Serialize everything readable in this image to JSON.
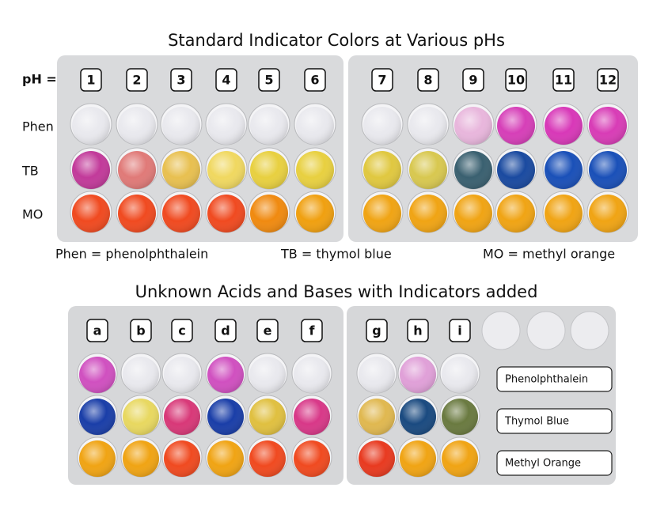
{
  "standard": {
    "title": "Standard Indicator Colors at Various pHs",
    "ph_label": "pH =",
    "ph_values": [
      "1",
      "2",
      "3",
      "4",
      "5",
      "6",
      "7",
      "8",
      "9",
      "10",
      "11",
      "12"
    ],
    "row_labels": [
      "Phen",
      "TB",
      "MO"
    ],
    "legend": [
      "Phen = phenolphthalein",
      "TB = thymol blue",
      "MO = methyl orange"
    ]
  },
  "unknowns": {
    "title": "Unknown Acids and Bases with Indicators added",
    "samples": [
      "a",
      "b",
      "c",
      "d",
      "e",
      "f",
      "g",
      "h",
      "i"
    ],
    "indicator_labels": [
      "Phenolphthalein",
      "Thymol Blue",
      "Methyl Orange"
    ]
  }
}
